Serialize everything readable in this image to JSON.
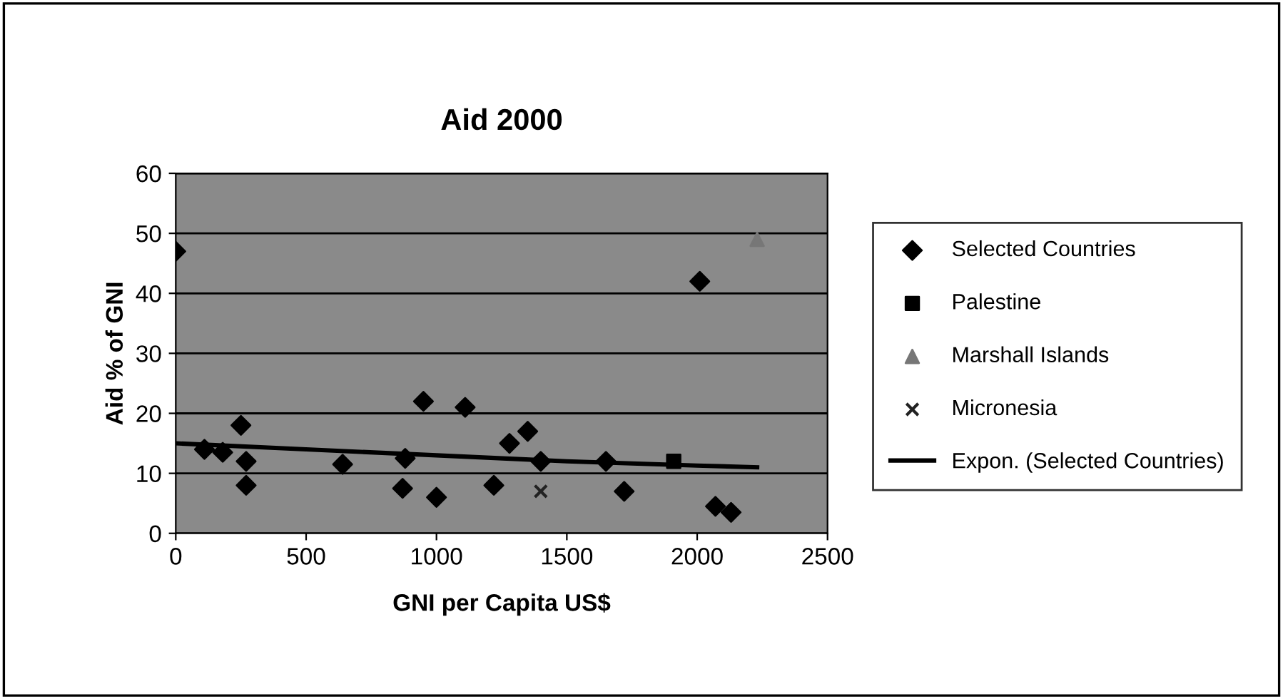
{
  "chart_data": {
    "type": "scatter",
    "title": "Aid 2000",
    "xlabel": "GNI per Capita US$",
    "ylabel": "Aid % of GNI",
    "xlim": [
      0,
      2500
    ],
    "xticks": [
      0,
      500,
      1000,
      1500,
      2000,
      2500
    ],
    "ylim": [
      0,
      60
    ],
    "yticks": [
      0,
      10,
      20,
      30,
      40,
      50,
      60
    ],
    "grid": "y",
    "legend": "right",
    "series": [
      {
        "name": "Selected Countries",
        "color": "#000000",
        "marker": "diamond",
        "x": [
          0,
          110,
          180,
          250,
          270,
          270,
          640,
          870,
          880,
          950,
          1000,
          1110,
          1220,
          1280,
          1350,
          1400,
          1650,
          1720,
          2010,
          2070,
          2130
        ],
        "values": [
          47,
          14,
          13.5,
          18,
          12,
          8,
          11.5,
          7.5,
          12.5,
          22,
          6,
          21,
          8,
          15,
          17,
          12,
          12,
          7,
          42,
          4.5,
          3.5
        ]
      },
      {
        "name": "Palestine",
        "color": "#000000",
        "marker": "square",
        "x": [
          1910
        ],
        "values": [
          12
        ]
      },
      {
        "name": "Marshall Islands",
        "color": "#777777",
        "marker": "triangle",
        "x": [
          2230
        ],
        "values": [
          49
        ]
      },
      {
        "name": "Micronesia",
        "color": "#222222",
        "marker": "cross",
        "x": [
          1400
        ],
        "values": [
          7
        ]
      },
      {
        "name": "Expon. (Selected Countries)",
        "type": "line",
        "color": "#000000",
        "marker": "none",
        "line_style": "solid",
        "x": [
          0,
          500,
          1000,
          1500,
          2000,
          2230
        ],
        "values": [
          15,
          14,
          13,
          12,
          11.3,
          11
        ]
      }
    ]
  }
}
